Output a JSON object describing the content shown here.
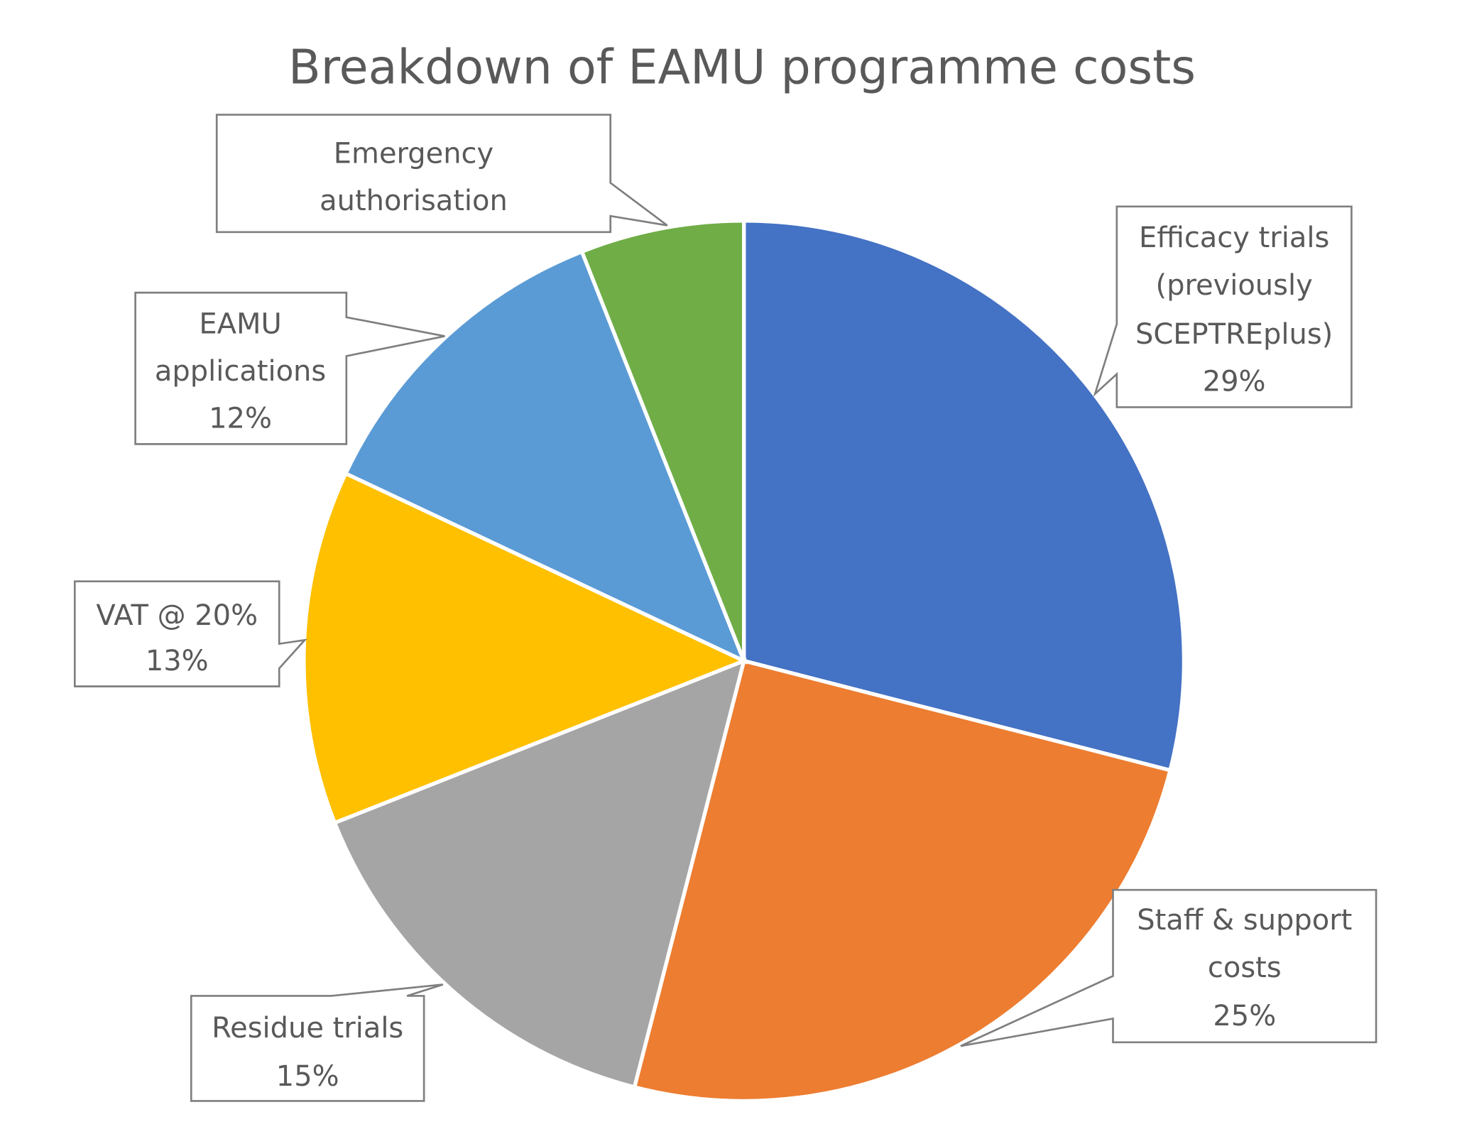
{
  "chart_data": {
    "type": "pie",
    "title": "Breakdown of EAMU programme costs",
    "start_angle": "top",
    "direction": "clockwise",
    "slices": [
      {
        "label": "Efficacy trials (previously SCEPTREplus)",
        "lines": [
          "Efficacy trials",
          "(previously",
          "SCEPTREplus)",
          "29%"
        ],
        "value": 29,
        "color": "#4472C4"
      },
      {
        "label": "Staff & support costs",
        "lines": [
          "Staff & support",
          "costs",
          "25%"
        ],
        "value": 25,
        "color": "#ED7D31"
      },
      {
        "label": "Residue trials",
        "lines": [
          "Residue trials",
          "15%"
        ],
        "value": 15,
        "color": "#A5A5A5"
      },
      {
        "label": "VAT @ 20%",
        "lines": [
          "VAT @ 20%",
          "13%"
        ],
        "value": 13,
        "color": "#FFC000"
      },
      {
        "label": "EAMU applications",
        "lines": [
          "EAMU",
          "applications",
          "12%"
        ],
        "value": 12,
        "color": "#5B9BD5"
      },
      {
        "label": "Emergency authorisation",
        "lines": [
          "Emergency",
          "authorisation"
        ],
        "value": 6,
        "color": "#70AD47"
      }
    ],
    "legend": "none",
    "data_labels": "callouts"
  }
}
